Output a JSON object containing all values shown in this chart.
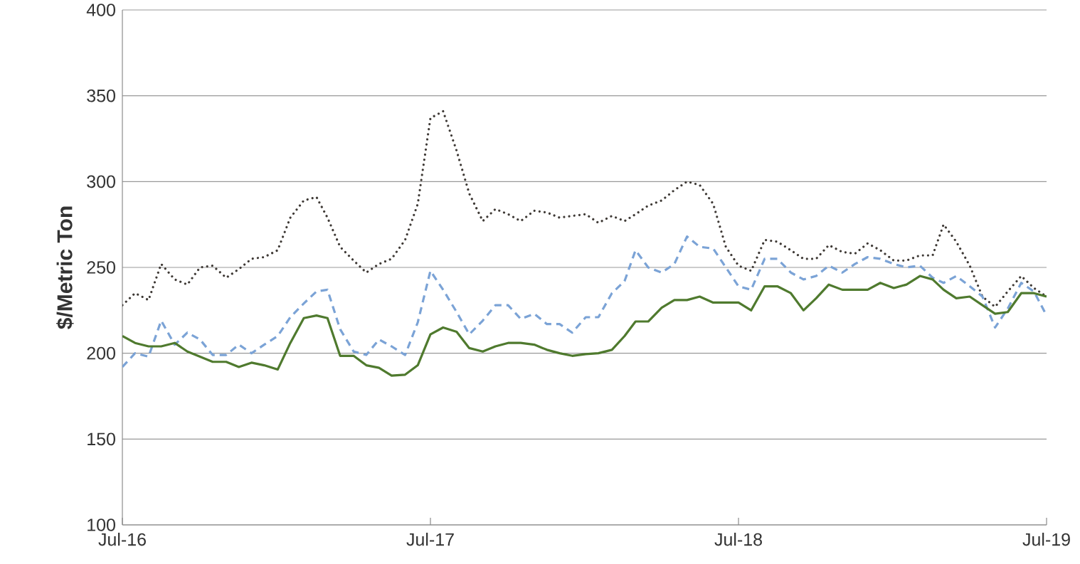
{
  "chart_data": {
    "type": "line",
    "ylabel": "$/Metric Ton",
    "x": [
      "2016-07-01",
      "2016-07-16",
      "2016-08-01",
      "2016-08-16",
      "2016-09-01",
      "2016-09-16",
      "2016-10-01",
      "2016-10-16",
      "2016-11-01",
      "2016-11-16",
      "2016-12-01",
      "2016-12-16",
      "2017-01-01",
      "2017-01-16",
      "2017-02-01",
      "2017-02-16",
      "2017-03-01",
      "2017-03-16",
      "2017-04-01",
      "2017-04-16",
      "2017-05-01",
      "2017-05-16",
      "2017-06-01",
      "2017-06-16",
      "2017-07-01",
      "2017-07-16",
      "2017-08-01",
      "2017-08-16",
      "2017-09-01",
      "2017-09-16",
      "2017-10-01",
      "2017-10-16",
      "2017-11-01",
      "2017-11-16",
      "2017-12-01",
      "2017-12-16",
      "2018-01-01",
      "2018-01-16",
      "2018-02-01",
      "2018-02-16",
      "2018-03-01",
      "2018-03-16",
      "2018-04-01",
      "2018-04-16",
      "2018-05-01",
      "2018-05-16",
      "2018-06-01",
      "2018-06-16",
      "2018-07-01",
      "2018-07-16",
      "2018-08-01",
      "2018-08-16",
      "2018-09-01",
      "2018-09-16",
      "2018-10-01",
      "2018-10-16",
      "2018-11-01",
      "2018-11-16",
      "2018-12-01",
      "2018-12-16",
      "2019-01-01",
      "2019-01-16",
      "2019-02-01",
      "2019-02-16",
      "2019-03-01",
      "2019-03-16",
      "2019-04-01",
      "2019-04-16",
      "2019-05-01",
      "2019-05-16",
      "2019-06-01",
      "2019-06-16",
      "2019-07-01"
    ],
    "series": [
      {
        "color": "#3f3a36",
        "line_style": "dotted",
        "values": [
          228,
          235,
          231,
          252,
          243,
          240,
          250,
          251,
          244,
          249,
          255,
          256,
          260,
          279,
          289,
          291,
          279,
          262,
          254,
          247,
          252,
          255,
          266,
          287,
          337,
          341,
          318,
          293,
          277,
          284,
          281,
          277,
          283,
          282,
          279,
          280,
          281,
          276,
          280,
          277,
          281,
          286,
          289,
          295,
          300,
          298,
          287,
          262,
          251,
          248,
          266,
          265,
          260,
          255,
          255,
          263,
          259,
          258,
          264,
          260,
          254,
          254,
          257,
          257,
          275,
          265,
          251,
          233,
          227,
          236,
          245,
          238,
          233
        ]
      },
      {
        "color": "#7ba3d6",
        "line_style": "dashed",
        "values": [
          192,
          200,
          198,
          219,
          205,
          212,
          208,
          199,
          199,
          205,
          200,
          205,
          210,
          221,
          229,
          236,
          237,
          214,
          201,
          199,
          208,
          204,
          199,
          218,
          248,
          237,
          224,
          211,
          219,
          228,
          228,
          220,
          223,
          217,
          217,
          212,
          221,
          221,
          235,
          242,
          260,
          250,
          247,
          252,
          268,
          262,
          261,
          250,
          239,
          237,
          255,
          255,
          247,
          243,
          245,
          251,
          247,
          252,
          256,
          255,
          252,
          250,
          251,
          244,
          241,
          245,
          239,
          233,
          215,
          226,
          241,
          236,
          222
        ]
      },
      {
        "color": "#4f7a2e",
        "line_style": "solid",
        "values": [
          210,
          206,
          204,
          204,
          206,
          201,
          198,
          195,
          195,
          192,
          194.5,
          193,
          190.5,
          206,
          220.5,
          222,
          220.5,
          198.5,
          198.5,
          193,
          191.5,
          187,
          187.5,
          193,
          211,
          215,
          212.5,
          203,
          201,
          204,
          206,
          206,
          205,
          202,
          200,
          198.5,
          199.5,
          200,
          202,
          210,
          218.5,
          218.5,
          226.5,
          231,
          231,
          233,
          229.5,
          229.5,
          229.5,
          225,
          239,
          239,
          235,
          225,
          232,
          240,
          237,
          237,
          237,
          241,
          238,
          240,
          245,
          243,
          237,
          232,
          233,
          228,
          223,
          224,
          235,
          235,
          233
        ]
      }
    ],
    "xlim": [
      "2016-07-01",
      "2019-07-01"
    ],
    "xticks": [
      {
        "value": "2016-07-01",
        "label": "Jul-16"
      },
      {
        "value": "2017-07-01",
        "label": "Jul-17"
      },
      {
        "value": "2018-07-01",
        "label": "Jul-18"
      },
      {
        "value": "2019-07-01",
        "label": "Jul-19"
      }
    ],
    "ylim": [
      100,
      400
    ],
    "yticks": [
      100,
      150,
      200,
      250,
      300,
      350,
      400
    ],
    "grid": "y"
  }
}
